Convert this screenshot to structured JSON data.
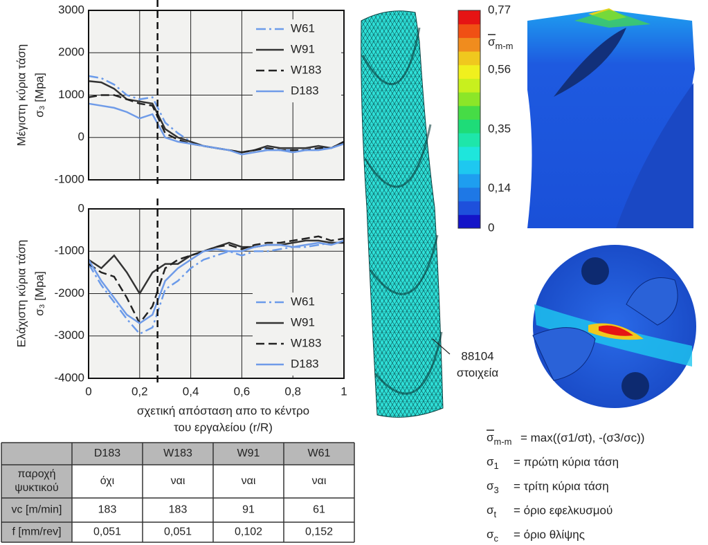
{
  "chart_data": [
    {
      "type": "line",
      "ylabel": [
        "Μέγιστη  κύρια τάση",
        "σ₃ [Mpa]"
      ],
      "x": [
        0,
        0.05,
        0.1,
        0.15,
        0.2,
        0.25,
        0.3,
        0.35,
        0.4,
        0.45,
        0.5,
        0.55,
        0.6,
        0.65,
        0.7,
        0.75,
        0.8,
        0.85,
        0.9,
        0.95,
        1
      ],
      "series": [
        {
          "name": "W61",
          "color": "#6b9bea",
          "style": "dashdot",
          "values": [
            1450,
            1400,
            1250,
            1000,
            900,
            950,
            350,
            100,
            -100,
            -200,
            -250,
            -300,
            -350,
            -300,
            -250,
            -300,
            -300,
            -300,
            -250,
            -250,
            -100
          ]
        },
        {
          "name": "W91",
          "color": "#333333",
          "style": "solid",
          "values": [
            1330,
            1300,
            1150,
            900,
            850,
            800,
            200,
            0,
            -100,
            -200,
            -250,
            -300,
            -350,
            -300,
            -200,
            -250,
            -250,
            -250,
            -200,
            -250,
            -100
          ]
        },
        {
          "name": "W183",
          "color": "#222222",
          "style": "dashed",
          "values": [
            950,
            1000,
            1000,
            900,
            800,
            750,
            100,
            -50,
            -150,
            -200,
            -250,
            -300,
            -350,
            -300,
            -250,
            -300,
            -300,
            -300,
            -250,
            -250,
            -100
          ]
        },
        {
          "name": "D183",
          "color": "#6f9be8",
          "style": "solid",
          "values": [
            800,
            750,
            700,
            600,
            450,
            550,
            0,
            -100,
            -150,
            -200,
            -250,
            -300,
            -400,
            -350,
            -300,
            -300,
            -350,
            -300,
            -300,
            -250,
            -150
          ]
        }
      ],
      "xlim": [
        0,
        1
      ],
      "xticks": [
        0,
        0.2,
        0.4,
        0.6,
        0.8,
        1
      ],
      "ylim": [
        -1000,
        3000
      ],
      "yticks": [
        3000,
        2000,
        1000,
        0,
        -1000
      ],
      "grid": true,
      "legend": "upper right",
      "marker_line": 0.27
    },
    {
      "type": "line",
      "ylabel": [
        "Ελάχιστη  κύρια τάση",
        "σ₃ [Mpa]"
      ],
      "xlabel": [
        "σχετική απόσταση απο το κέντρο",
        "του εργαλείου (r/R)"
      ],
      "x": [
        0,
        0.05,
        0.1,
        0.15,
        0.2,
        0.25,
        0.3,
        0.35,
        0.4,
        0.45,
        0.5,
        0.55,
        0.6,
        0.65,
        0.7,
        0.75,
        0.8,
        0.85,
        0.9,
        0.95,
        1
      ],
      "series": [
        {
          "name": "W61",
          "color": "#6b9bea",
          "style": "dashdot",
          "values": [
            -1300,
            -1800,
            -2200,
            -2600,
            -2950,
            -2800,
            -1900,
            -1700,
            -1400,
            -1200,
            -1100,
            -1000,
            -1100,
            -1000,
            -1000,
            -950,
            -900,
            -900,
            -850,
            -800,
            -800
          ]
        },
        {
          "name": "W91",
          "color": "#333333",
          "style": "solid",
          "values": [
            -1200,
            -1400,
            -1100,
            -1500,
            -2000,
            -1500,
            -1300,
            -1300,
            -1100,
            -1000,
            -900,
            -800,
            -900,
            -900,
            -850,
            -850,
            -800,
            -750,
            -750,
            -800,
            -800
          ]
        },
        {
          "name": "W183",
          "color": "#222222",
          "style": "dashed",
          "values": [
            -1300,
            -1500,
            -1600,
            -2100,
            -2700,
            -2300,
            -1400,
            -1200,
            -1100,
            -1000,
            -900,
            -850,
            -950,
            -850,
            -800,
            -800,
            -750,
            -700,
            -650,
            -750,
            -700
          ]
        },
        {
          "name": "D183",
          "color": "#6f9be8",
          "style": "solid",
          "values": [
            -1200,
            -1700,
            -2100,
            -2500,
            -2700,
            -2500,
            -1700,
            -1400,
            -1200,
            -1000,
            -950,
            -1000,
            -1000,
            -900,
            -850,
            -850,
            -900,
            -850,
            -800,
            -850,
            -750
          ]
        }
      ],
      "xlim": [
        0,
        1
      ],
      "xticks": [
        0,
        {
          "value": 0.2,
          "label": "0,2"
        },
        {
          "value": 0.4,
          "label": "0,4"
        },
        {
          "value": 0.6,
          "label": "0,6"
        },
        {
          "value": 0.8,
          "label": "0,8"
        },
        1
      ],
      "ylim": [
        -4000,
        0
      ],
      "yticks": [
        0,
        -1000,
        -2000,
        -3000,
        -4000
      ],
      "grid": true,
      "legend": "lower right",
      "marker_line": 0.27
    }
  ],
  "mesh": {
    "count": "88104",
    "label": "στοιχεία"
  },
  "colorbar": {
    "symbol": "σ",
    "sub": "m-m",
    "lim": [
      0,
      0.77
    ],
    "ticks": [
      {
        "value": 0.77,
        "label": "0,77"
      },
      {
        "value": 0.56,
        "label": "0,56"
      },
      {
        "value": 0.35,
        "label": "0,35"
      },
      {
        "value": 0.14,
        "label": "0,14"
      },
      0
    ],
    "colors": [
      "#1414c8",
      "#1e50dc",
      "#1e78e6",
      "#1e9ef0",
      "#1ec8f0",
      "#1ee6dc",
      "#1ee6aa",
      "#1edc78",
      "#46dc46",
      "#8ce628",
      "#c8f01e",
      "#f0f01e",
      "#f0c81e",
      "#f08c1e",
      "#f05014",
      "#e61414"
    ]
  },
  "definitions": [
    {
      "symbol": "σ",
      "sub": "m-m",
      "text": "= max((σ1/σt), -(σ3/σc))"
    },
    {
      "symbol": "σ",
      "sub": "1",
      "text": "=  πρώτη κύρια τάση"
    },
    {
      "symbol": "σ",
      "sub": "3",
      "text": "=  τρίτη κύρια τάση"
    },
    {
      "symbol": "σ",
      "sub": "t",
      "text": "=  όριο εφελκυσμού"
    },
    {
      "symbol": "σ",
      "sub": "c",
      "text": "=  όριο θλίψης"
    }
  ],
  "table": {
    "header": [
      "D183",
      "W183",
      "W91",
      "W61"
    ],
    "rows": [
      {
        "label": [
          "παροχή",
          "ψυκτικού"
        ],
        "cells": [
          "όχι",
          "ναι",
          "ναι",
          "ναι"
        ]
      },
      {
        "label": [
          "vc [m/min]"
        ],
        "cells": [
          "183",
          "183",
          "91",
          "61"
        ]
      },
      {
        "label": [
          "f [mm/rev]"
        ],
        "cells": [
          "0,051",
          "0,051",
          "0,102",
          "0,152"
        ]
      }
    ]
  }
}
